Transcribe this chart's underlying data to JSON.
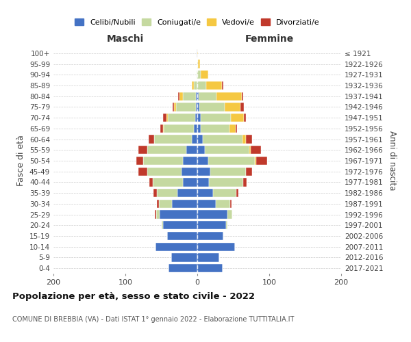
{
  "age_groups": [
    "100+",
    "95-99",
    "90-94",
    "85-89",
    "80-84",
    "75-79",
    "70-74",
    "65-69",
    "60-64",
    "55-59",
    "50-54",
    "45-49",
    "40-44",
    "35-39",
    "30-34",
    "25-29",
    "20-24",
    "15-19",
    "10-14",
    "5-9",
    "0-4"
  ],
  "birth_years": [
    "≤ 1921",
    "1922-1926",
    "1927-1931",
    "1932-1936",
    "1937-1941",
    "1942-1946",
    "1947-1951",
    "1952-1956",
    "1957-1961",
    "1962-1966",
    "1967-1971",
    "1972-1976",
    "1977-1981",
    "1982-1986",
    "1987-1991",
    "1992-1996",
    "1997-2001",
    "2002-2006",
    "2007-2011",
    "2012-2016",
    "2017-2021"
  ],
  "male_celibi": [
    1,
    0,
    0,
    0,
    2,
    2,
    3,
    5,
    8,
    15,
    20,
    22,
    20,
    28,
    35,
    52,
    48,
    42,
    58,
    36,
    40
  ],
  "male_coniugati": [
    0,
    0,
    1,
    5,
    18,
    28,
    38,
    42,
    52,
    55,
    55,
    48,
    42,
    28,
    18,
    5,
    2,
    0,
    0,
    0,
    0
  ],
  "male_vedovi": [
    0,
    0,
    0,
    3,
    5,
    2,
    2,
    1,
    0,
    0,
    0,
    0,
    0,
    0,
    0,
    0,
    0,
    0,
    0,
    0,
    0
  ],
  "male_divorziati": [
    0,
    0,
    0,
    0,
    2,
    2,
    5,
    3,
    8,
    12,
    10,
    12,
    5,
    5,
    3,
    2,
    0,
    0,
    0,
    0,
    0
  ],
  "female_nubili": [
    0,
    0,
    0,
    0,
    2,
    3,
    5,
    5,
    8,
    10,
    15,
    18,
    16,
    22,
    26,
    42,
    40,
    36,
    52,
    30,
    35
  ],
  "female_coniugate": [
    0,
    1,
    5,
    12,
    25,
    35,
    42,
    40,
    55,
    62,
    65,
    50,
    48,
    32,
    20,
    7,
    2,
    0,
    0,
    0,
    0
  ],
  "female_vedove": [
    1,
    3,
    10,
    22,
    35,
    22,
    18,
    8,
    5,
    2,
    2,
    0,
    0,
    0,
    0,
    0,
    0,
    0,
    0,
    0,
    0
  ],
  "female_divorziate": [
    0,
    0,
    0,
    2,
    2,
    5,
    3,
    2,
    8,
    15,
    15,
    8,
    5,
    3,
    2,
    0,
    0,
    0,
    0,
    0,
    0
  ],
  "color_celibi": "#4472c4",
  "color_coniugati": "#c5d9a0",
  "color_vedovi": "#f5c842",
  "color_divorziati": "#c0392b",
  "xlim": 200,
  "title": "Popolazione per età, sesso e stato civile - 2022",
  "subtitle": "COMUNE DI BREBBIA (VA) - Dati ISTAT 1° gennaio 2022 - Elaborazione TUTTITALIA.IT",
  "ylabel_left": "Fasce di età",
  "ylabel_right": "Anni di nascita",
  "label_maschi": "Maschi",
  "label_femmine": "Femmine",
  "legend_labels": [
    "Celibi/Nubili",
    "Coniugati/e",
    "Vedovi/e",
    "Divorziati/e"
  ],
  "bg_color": "#ffffff",
  "grid_color": "#cccccc"
}
